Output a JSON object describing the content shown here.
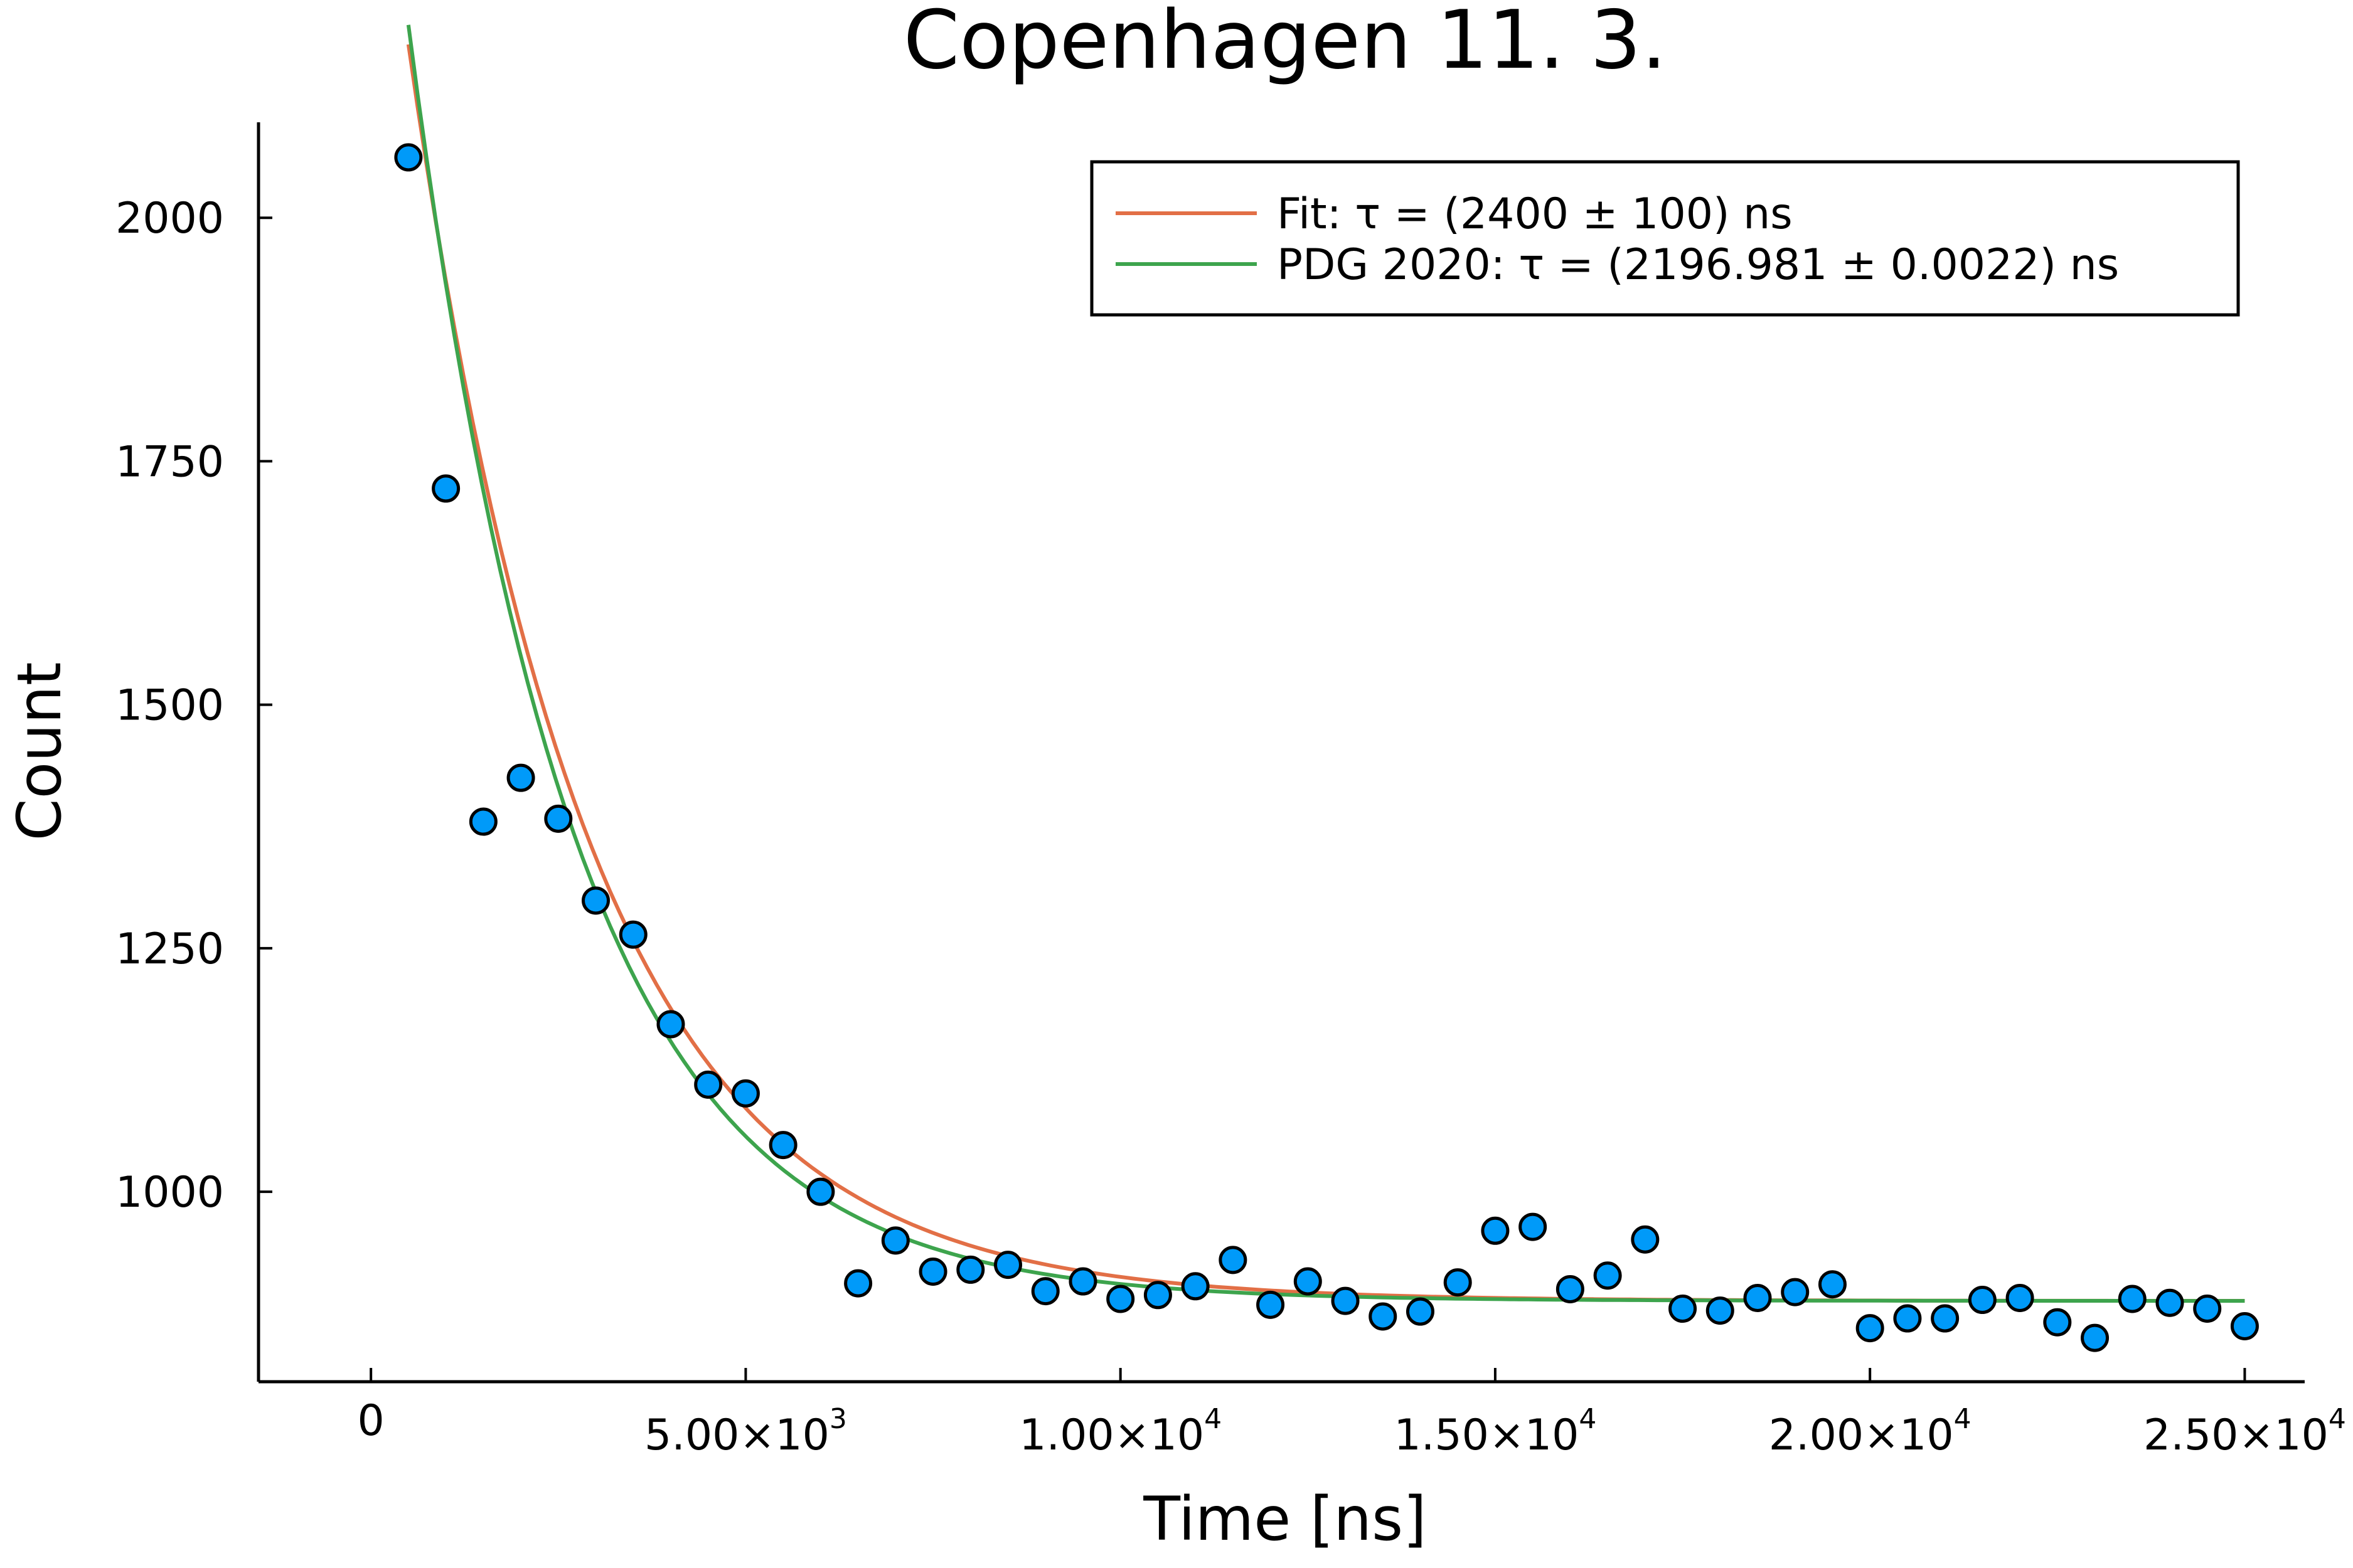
{
  "chart_data": {
    "type": "scatter",
    "title": "Copenhagen 11. 3.",
    "xlabel": "Time [ns]",
    "ylabel": "Count",
    "xlim": [
      -1500,
      25800
    ],
    "ylim": [
      805,
      2098
    ],
    "x_ticks": [
      {
        "value": 0,
        "label": "0",
        "exp": ""
      },
      {
        "value": 5000,
        "label": "5.00×10",
        "exp": "3"
      },
      {
        "value": 10000,
        "label": "1.00×10",
        "exp": "4"
      },
      {
        "value": 15000,
        "label": "1.50×10",
        "exp": "4"
      },
      {
        "value": 20000,
        "label": "2.00×10",
        "exp": "4"
      },
      {
        "value": 25000,
        "label": "2.50×10",
        "exp": "4"
      }
    ],
    "y_ticks": [
      {
        "value": 1000,
        "label": "1000"
      },
      {
        "value": 1250,
        "label": "1250"
      },
      {
        "value": 1500,
        "label": "1500"
      },
      {
        "value": 1750,
        "label": "1750"
      },
      {
        "value": 2000,
        "label": "2000"
      }
    ],
    "grid": false,
    "legend_position": "top-right",
    "series": [
      {
        "kind": "scatter",
        "color": "#009af9",
        "x": [
          500,
          1000,
          1500,
          2000,
          2500,
          3000,
          3500,
          4000,
          4500,
          5000,
          5500,
          6000,
          6500,
          7000,
          7500,
          8000,
          8500,
          9000,
          9500,
          10000,
          10500,
          11000,
          11500,
          12000,
          12500,
          13000,
          13500,
          14000,
          14500,
          15000,
          15500,
          16000,
          16500,
          17000,
          17500,
          18000,
          18500,
          19000,
          19500,
          20000,
          20500,
          21000,
          21500,
          22000,
          22500,
          23000,
          23500,
          24000,
          24500,
          25000
        ],
        "y": [
          2062,
          1722,
          1380,
          1425,
          1383,
          1299,
          1264,
          1172,
          1110,
          1101,
          1048,
          1000,
          906,
          950,
          918,
          920,
          925,
          898,
          908,
          890,
          894,
          903,
          930,
          884,
          908,
          888,
          872,
          877,
          907,
          960,
          964,
          900,
          914,
          951,
          880,
          878,
          891,
          897,
          905,
          860,
          870,
          870,
          889,
          891,
          866,
          850,
          890,
          886,
          880,
          862
        ]
      },
      {
        "kind": "line",
        "name": "Fit: τ = (2400 ± 100) ns",
        "color": "#e26f46",
        "model": {
          "A": 1290,
          "tau": 2400,
          "C": 888
        }
      },
      {
        "kind": "line",
        "name": "PDG 2020: τ = (2196.981 ± 0.0022) ns",
        "color": "#3da44d",
        "model": {
          "A": 1310,
          "tau": 2196.981,
          "C": 888
        }
      }
    ]
  }
}
